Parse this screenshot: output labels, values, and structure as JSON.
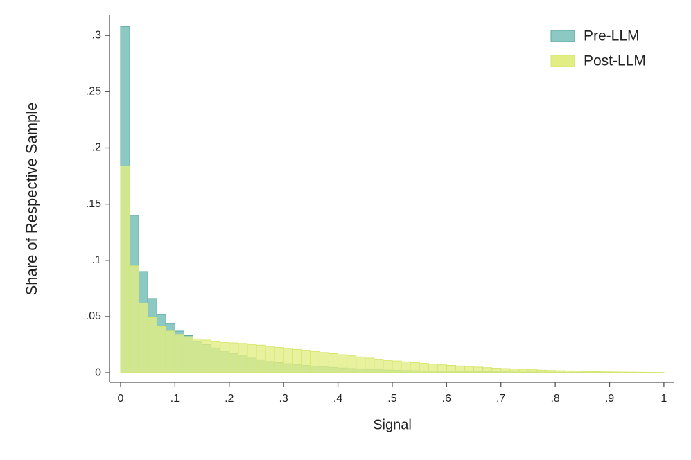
{
  "chart_data": {
    "type": "histogram",
    "xlabel": "Signal",
    "ylabel": "Share of Respective Sample",
    "bins": [
      0,
      0.0167,
      0.0333,
      0.05,
      0.0667,
      0.0833,
      0.1,
      0.1167,
      0.1333,
      0.15,
      0.1667,
      0.1833,
      0.2,
      0.2167,
      0.2333,
      0.25,
      0.2667,
      0.2833,
      0.3,
      0.3167,
      0.3333,
      0.35,
      0.3667,
      0.3833,
      0.4,
      0.4167,
      0.4333,
      0.45,
      0.4667,
      0.4833,
      0.5,
      0.5167,
      0.5333,
      0.55,
      0.5667,
      0.5833,
      0.6,
      0.6167,
      0.6333,
      0.65,
      0.6667,
      0.6833,
      0.7,
      0.7167,
      0.7333,
      0.75,
      0.7667,
      0.7833,
      0.8,
      0.8167,
      0.8333,
      0.85,
      0.8667,
      0.8833,
      0.9,
      0.9167,
      0.9333,
      0.95,
      0.9667,
      0.9833,
      1
    ],
    "series": [
      {
        "name": "Pre-LLM",
        "color": "#8dc9c3",
        "values": [
          0.308,
          0.14,
          0.09,
          0.066,
          0.052,
          0.044,
          0.037,
          0.033,
          0.028,
          0.025,
          0.022,
          0.019,
          0.017,
          0.015,
          0.013,
          0.0115,
          0.01,
          0.009,
          0.008,
          0.0072,
          0.0065,
          0.0058,
          0.0052,
          0.0047,
          0.0042,
          0.0038,
          0.0034,
          0.003,
          0.0027,
          0.0024,
          0.0022,
          0.002,
          0.0018,
          0.0016,
          0.0015,
          0.0014,
          0.0013,
          0.0012,
          0.0011,
          0.001,
          0.0009,
          0.0008,
          0.0008,
          0.0007,
          0.0006,
          0.0006,
          0.0005,
          0.0005,
          0.0004,
          0.0004,
          0.0003,
          0.0003,
          0.0003,
          0.0002,
          0.0002,
          0.0002,
          0.0002,
          0.0001,
          0.0001,
          0.0001
        ]
      },
      {
        "name": "Post-LLM",
        "color": "#e2ee84",
        "values": [
          0.184,
          0.095,
          0.062,
          0.049,
          0.041,
          0.037,
          0.034,
          0.032,
          0.03,
          0.029,
          0.028,
          0.027,
          0.0265,
          0.026,
          0.0252,
          0.0245,
          0.0235,
          0.0225,
          0.0217,
          0.0208,
          0.02,
          0.019,
          0.018,
          0.017,
          0.016,
          0.015,
          0.014,
          0.013,
          0.012,
          0.011,
          0.0104,
          0.0097,
          0.009,
          0.0083,
          0.0076,
          0.007,
          0.0065,
          0.006,
          0.0055,
          0.005,
          0.0045,
          0.004,
          0.0037,
          0.0033,
          0.003,
          0.0027,
          0.0023,
          0.002,
          0.0018,
          0.0016,
          0.0014,
          0.0012,
          0.001,
          0.0008,
          0.0007,
          0.0006,
          0.0005,
          0.0004,
          0.0003,
          0.0002
        ]
      }
    ],
    "xlim": [
      -0.0204,
      1.018
    ],
    "ylim": [
      -0.0086,
      0.318
    ],
    "xticks": [
      0,
      {
        "value": 0.1,
        "label": ".1"
      },
      {
        "value": 0.2,
        "label": ".2"
      },
      {
        "value": 0.3,
        "label": ".3"
      },
      {
        "value": 0.4,
        "label": ".4"
      },
      {
        "value": 0.5,
        "label": ".5"
      },
      {
        "value": 0.6,
        "label": ".6"
      },
      {
        "value": 0.7,
        "label": ".7"
      },
      {
        "value": 0.8,
        "label": ".8"
      },
      {
        "value": 0.9,
        "label": ".9"
      },
      1
    ],
    "yticks": [
      0,
      {
        "value": 0.05,
        "label": ".05"
      },
      {
        "value": 0.1,
        "label": ".1"
      },
      {
        "value": 0.15,
        "label": ".15"
      },
      {
        "value": 0.2,
        "label": ".2"
      },
      {
        "value": 0.25,
        "label": ".25"
      },
      {
        "value": 0.3,
        "label": ".3"
      }
    ],
    "legend": "top-right",
    "grid": false
  }
}
